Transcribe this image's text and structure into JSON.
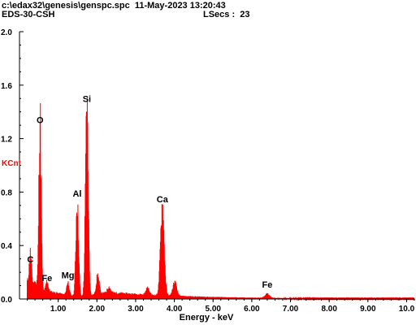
{
  "header": {
    "file_line": "c:\\edax32\\genesis\\genspc.spc  11-May-2023 13:20:43",
    "sample": "EDS-30-CSH",
    "lsecs": "LSecs :  23"
  },
  "colors": {
    "spectrum": "#ff0000",
    "axis": "#000000",
    "ylabel": "#ff0000"
  },
  "chart_data": {
    "type": "area",
    "title": "",
    "xlabel": "Energy - keV",
    "ylabel": "KCnt",
    "xlim": [
      0,
      10.2
    ],
    "ylim": [
      0,
      2.0
    ],
    "x_ticks": [
      "1.00",
      "2.00",
      "3.00",
      "4.00",
      "5.00",
      "6.00",
      "7.00",
      "8.00",
      "9.00",
      "10.0"
    ],
    "y_ticks": [
      "0.0",
      "0.4",
      "0.8",
      "1.2",
      "1.6",
      "2.0"
    ],
    "peaks": [
      {
        "element": "C",
        "energy": 0.28,
        "height": 0.22
      },
      {
        "element": "O",
        "energy": 0.53,
        "height": 1.26
      },
      {
        "element": "Fe",
        "energy": 0.71,
        "height": 0.08
      },
      {
        "element": "Mg",
        "energy": 1.25,
        "height": 0.1
      },
      {
        "element": "Al",
        "energy": 1.49,
        "height": 0.71
      },
      {
        "element": "Si",
        "energy": 1.74,
        "height": 1.42
      },
      {
        "element": "Ca",
        "energy": 3.69,
        "height": 0.67
      },
      {
        "element": "Fe",
        "energy": 6.4,
        "height": 0.03
      }
    ],
    "minor_peaks": [
      {
        "energy": 2.02,
        "height": 0.14
      },
      {
        "energy": 2.31,
        "height": 0.04
      },
      {
        "energy": 3.31,
        "height": 0.05
      },
      {
        "energy": 4.01,
        "height": 0.1
      }
    ]
  }
}
